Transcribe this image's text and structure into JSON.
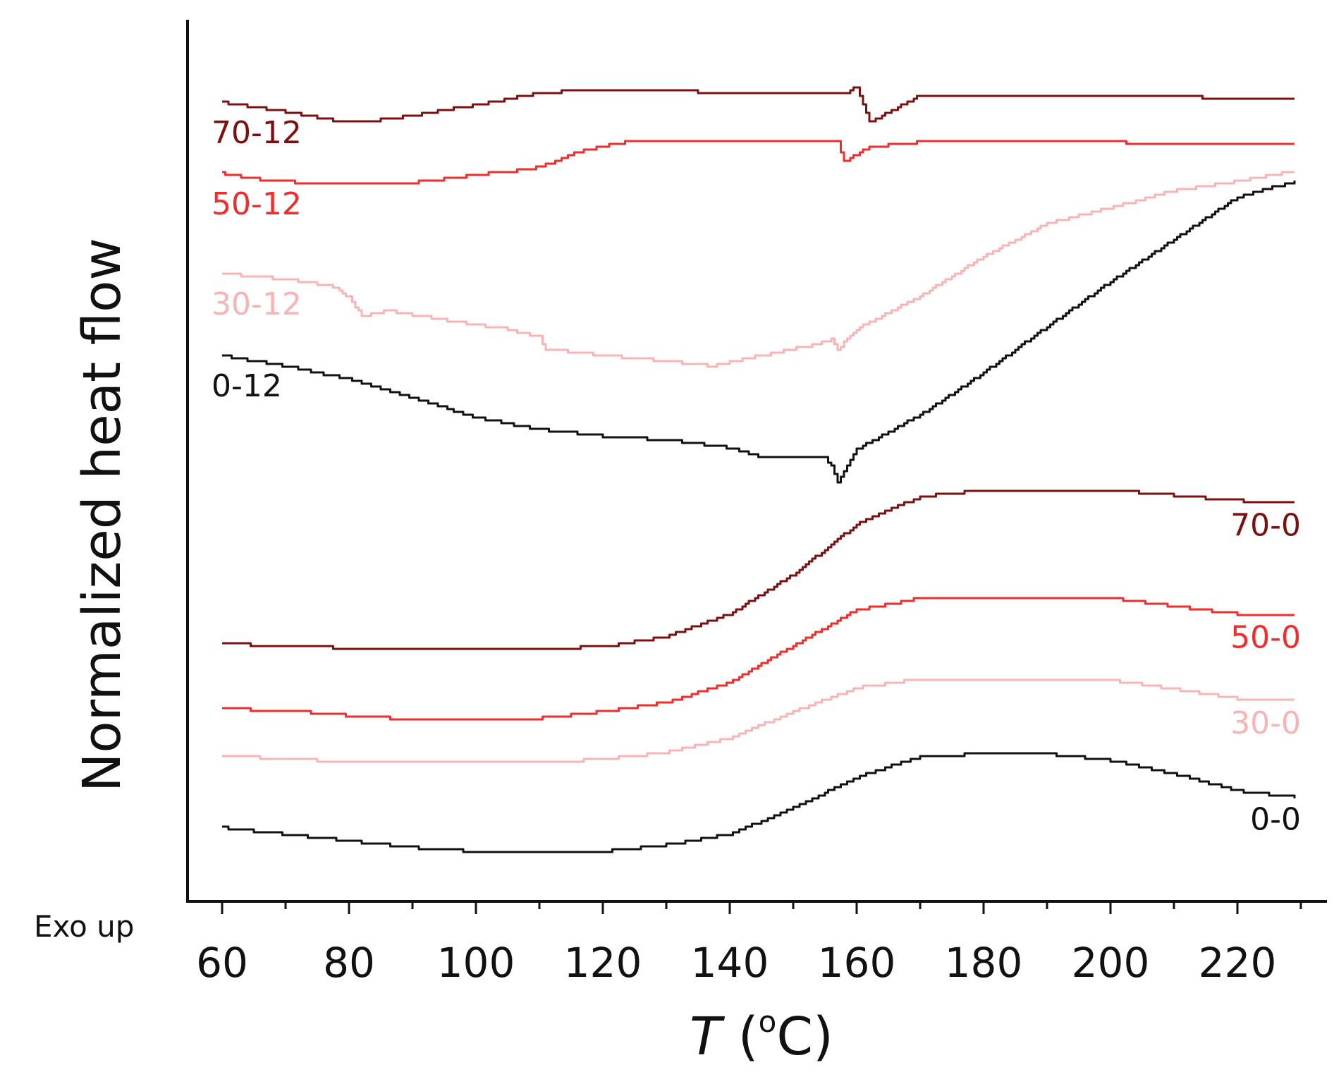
{
  "chart_data": {
    "type": "line",
    "title": "",
    "xlabel_italic": "T",
    "xlabel_rest": " (",
    "xlabel_sup": "o",
    "xlabel_unit": "C)",
    "ylabel": "Normalized heat flow",
    "exo_note": "Exo up",
    "xlim": [
      55,
      230
    ],
    "xticks": [
      60,
      80,
      100,
      120,
      140,
      160,
      180,
      200,
      220
    ],
    "minor_step": 10,
    "y_ticks_shown": false,
    "ylim": [
      -5.3,
      1.55
    ],
    "series": [
      {
        "name": "70-12",
        "label": "70-12",
        "color": "#7b1010",
        "label_side": "left",
        "x": [
          60,
          70,
          78,
          84,
          90,
          100,
          110,
          120,
          135,
          150,
          158,
          160,
          162,
          170,
          190,
          210,
          220,
          229
        ],
        "y": [
          1.0,
          0.93,
          0.86,
          0.86,
          0.9,
          0.98,
          1.07,
          1.1,
          1.08,
          1.06,
          1.06,
          1.12,
          0.85,
          1.05,
          1.05,
          1.05,
          1.02,
          1.03
        ]
      },
      {
        "name": "50-12",
        "label": "50-12",
        "color": "#f02c2c",
        "label_side": "left",
        "x": [
          60,
          65,
          70,
          76,
          85,
          92,
          100,
          108,
          112,
          116,
          120,
          124,
          140,
          157,
          158,
          159,
          162,
          170,
          190,
          200,
          210,
          220,
          229
        ],
        "y": [
          0.46,
          0.42,
          0.4,
          0.38,
          0.38,
          0.4,
          0.45,
          0.49,
          0.54,
          0.62,
          0.67,
          0.7,
          0.7,
          0.7,
          0.55,
          0.58,
          0.66,
          0.7,
          0.7,
          0.7,
          0.68,
          0.68,
          0.68
        ]
      },
      {
        "name": "30-12",
        "label": "30-12",
        "color": "#f8b4b4",
        "label_side": "left",
        "x": [
          60,
          70,
          78,
          80,
          82,
          86,
          95,
          105,
          110,
          111,
          120,
          130,
          137,
          145,
          153,
          156,
          157,
          160,
          170,
          180,
          190,
          200,
          210,
          220,
          229
        ],
        "y": [
          -0.3,
          -0.34,
          -0.4,
          -0.48,
          -0.62,
          -0.58,
          -0.65,
          -0.72,
          -0.78,
          -0.87,
          -0.92,
          -0.96,
          -1.0,
          -0.92,
          -0.84,
          -0.8,
          -0.87,
          -0.72,
          -0.47,
          -0.17,
          0.08,
          0.2,
          0.33,
          0.4,
          0.48
        ]
      },
      {
        "name": "0-12",
        "label": "0-12",
        "color": "#111111",
        "label_side": "left",
        "x": [
          60,
          70,
          80,
          90,
          100,
          110,
          120,
          130,
          140,
          145,
          150,
          155,
          156,
          157,
          160,
          170,
          180,
          190,
          200,
          210,
          220,
          229
        ],
        "y": [
          -0.92,
          -1.0,
          -1.1,
          -1.24,
          -1.39,
          -1.48,
          -1.53,
          -1.56,
          -1.62,
          -1.69,
          -1.7,
          -1.7,
          -1.75,
          -1.88,
          -1.63,
          -1.37,
          -1.05,
          -0.7,
          -0.36,
          -0.04,
          0.28,
          0.4
        ]
      },
      {
        "name": "70-0",
        "label": "70-0",
        "color": "#7b1010",
        "label_side": "right",
        "x": [
          60,
          70,
          90,
          100,
          110,
          120,
          130,
          140,
          150,
          160,
          170,
          180,
          190,
          200,
          210,
          220,
          229
        ],
        "y": [
          -3.1,
          -3.13,
          -3.14,
          -3.14,
          -3.14,
          -3.13,
          -3.05,
          -2.88,
          -2.58,
          -2.2,
          -1.99,
          -1.94,
          -1.94,
          -1.94,
          -1.98,
          -2.02,
          -2.04
        ]
      },
      {
        "name": "50-0",
        "label": "50-0",
        "color": "#f02c2c",
        "label_side": "right",
        "x": [
          60,
          70,
          80,
          90,
          100,
          110,
          120,
          130,
          140,
          150,
          160,
          170,
          180,
          190,
          200,
          210,
          220,
          229
        ],
        "y": [
          -3.6,
          -3.61,
          -3.65,
          -3.68,
          -3.68,
          -3.67,
          -3.62,
          -3.55,
          -3.4,
          -3.12,
          -2.85,
          -2.76,
          -2.76,
          -2.76,
          -2.76,
          -2.82,
          -2.88,
          -2.89
        ]
      },
      {
        "name": "30-0",
        "label": "30-0",
        "color": "#f8b4b4",
        "label_side": "right",
        "x": [
          60,
          70,
          80,
          90,
          100,
          110,
          120,
          130,
          140,
          150,
          160,
          170,
          180,
          190,
          200,
          210,
          220,
          229
        ],
        "y": [
          -3.95,
          -3.98,
          -4.0,
          -4.01,
          -4.01,
          -4.01,
          -3.98,
          -3.93,
          -3.82,
          -3.62,
          -3.44,
          -3.37,
          -3.37,
          -3.37,
          -3.38,
          -3.45,
          -3.52,
          -3.54
        ]
      },
      {
        "name": "0-0",
        "label": "0-0",
        "color": "#111111",
        "label_side": "right",
        "x": [
          60,
          70,
          80,
          90,
          100,
          110,
          120,
          130,
          140,
          150,
          160,
          170,
          180,
          190,
          200,
          210,
          220,
          229
        ],
        "y": [
          -4.5,
          -4.55,
          -4.6,
          -4.65,
          -4.68,
          -4.68,
          -4.68,
          -4.63,
          -4.55,
          -4.35,
          -4.12,
          -3.96,
          -3.94,
          -3.94,
          -3.99,
          -4.09,
          -4.22,
          -4.27
        ]
      }
    ]
  }
}
